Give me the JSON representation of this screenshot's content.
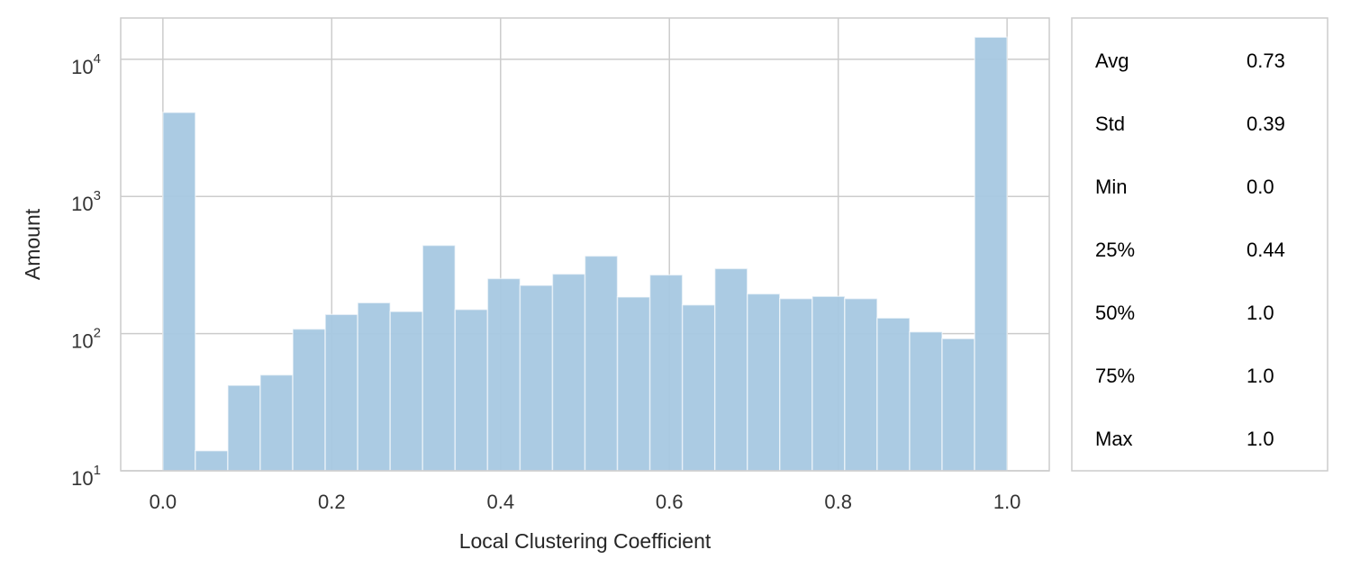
{
  "chart_data": {
    "type": "bar",
    "xlabel": "Local Clustering Coefficient",
    "ylabel": "Amount",
    "yscale": "log",
    "ylim": [
      10,
      20000
    ],
    "xlim": [
      -0.05,
      1.05
    ],
    "grid": true,
    "bar_color": "#a6c8e1",
    "bin_edges": [
      0.0,
      0.03846,
      0.07692,
      0.11538,
      0.15385,
      0.19231,
      0.23077,
      0.26923,
      0.30769,
      0.34615,
      0.38462,
      0.42308,
      0.46154,
      0.5,
      0.53846,
      0.57692,
      0.61538,
      0.65385,
      0.69231,
      0.73077,
      0.76923,
      0.80769,
      0.84615,
      0.88462,
      0.92308,
      0.96154,
      1.0
    ],
    "values": [
      4100,
      14,
      42,
      50,
      108,
      138,
      168,
      145,
      440,
      150,
      252,
      225,
      272,
      368,
      185,
      268,
      162,
      298,
      195,
      180,
      187,
      180,
      130,
      103,
      92,
      14500
    ],
    "x_ticks": [
      {
        "value": 0.0,
        "label": "0.0"
      },
      {
        "value": 0.2,
        "label": "0.2"
      },
      {
        "value": 0.4,
        "label": "0.4"
      },
      {
        "value": 0.6,
        "label": "0.6"
      },
      {
        "value": 0.8,
        "label": "0.8"
      },
      {
        "value": 1.0,
        "label": "1.0"
      }
    ],
    "y_ticks": [
      {
        "value": 10,
        "base": "10",
        "exp": "1"
      },
      {
        "value": 100,
        "base": "10",
        "exp": "2"
      },
      {
        "value": 1000,
        "base": "10",
        "exp": "3"
      },
      {
        "value": 10000,
        "base": "10",
        "exp": "4"
      }
    ]
  },
  "stats": [
    {
      "label": "Avg",
      "value": "0.73"
    },
    {
      "label": "Std",
      "value": "0.39"
    },
    {
      "label": "Min",
      "value": "0.0"
    },
    {
      "label": "25%",
      "value": "0.44"
    },
    {
      "label": "50%",
      "value": "1.0"
    },
    {
      "label": "75%",
      "value": "1.0"
    },
    {
      "label": "Max",
      "value": "1.0"
    }
  ]
}
